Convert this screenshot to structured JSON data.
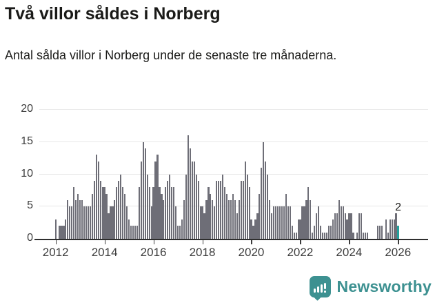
{
  "header": {
    "title": "Två villor såldes i Norberg",
    "subtitle": "Antal sålda villor i Norberg under de senaste tre månaderna."
  },
  "chart_data": {
    "type": "bar",
    "title": "Två villor såldes i Norberg",
    "xlabel": "",
    "ylabel": "",
    "x_unit": "month",
    "x_start": "2012-01",
    "x_end": "2026-01",
    "ylim": [
      0,
      20
    ],
    "y_ticks": [
      0,
      5,
      10,
      15,
      20
    ],
    "x_ticks": [
      "2012",
      "2014",
      "2016",
      "2018",
      "2020",
      "2022",
      "2024",
      "2026"
    ],
    "grid": "horizontal",
    "bar_color": "#6e6e77",
    "series": [
      {
        "name": "Antal sålda villor",
        "values": [
          3,
          0,
          2,
          2,
          2,
          3,
          6,
          5,
          5,
          8,
          6,
          7,
          6,
          6,
          5,
          5,
          5,
          5,
          7,
          9,
          13,
          12,
          9,
          8,
          8,
          7,
          4,
          5,
          5,
          6,
          8,
          9,
          10,
          8,
          7,
          5,
          3,
          2,
          2,
          2,
          2,
          8,
          12,
          15,
          14,
          10,
          8,
          5,
          8,
          12,
          13,
          8,
          7,
          6,
          8,
          9,
          10,
          8,
          8,
          5,
          2,
          2,
          3,
          6,
          10,
          16,
          14,
          12,
          12,
          10,
          9,
          5,
          5,
          4,
          6,
          8,
          7,
          6,
          5,
          9,
          9,
          9,
          10,
          8,
          7,
          6,
          6,
          7,
          6,
          4,
          6,
          9,
          9,
          12,
          10,
          8,
          3,
          2,
          3,
          4,
          7,
          11,
          15,
          12,
          10,
          6,
          4,
          5,
          5,
          5,
          5,
          5,
          5,
          7,
          5,
          5,
          2,
          1,
          1,
          3,
          3,
          5,
          5,
          6,
          8,
          6,
          1,
          2,
          4,
          5,
          2,
          1,
          1,
          1,
          2,
          2,
          3,
          4,
          4,
          6,
          5,
          5,
          4,
          3,
          4,
          4,
          1,
          0,
          1,
          4,
          4,
          1,
          1,
          1,
          0,
          0,
          0,
          0,
          2,
          2,
          2,
          0,
          3,
          1,
          3,
          3,
          3,
          4,
          2
        ]
      }
    ],
    "highlight": {
      "index": 168,
      "value": 2,
      "label": "2",
      "color": "#23a09c"
    }
  },
  "footer": {
    "brand": "Newsworthy",
    "brand_color": "#3d9191",
    "icon": "newsworthy-speech-bubble-bar-chart-icon"
  }
}
